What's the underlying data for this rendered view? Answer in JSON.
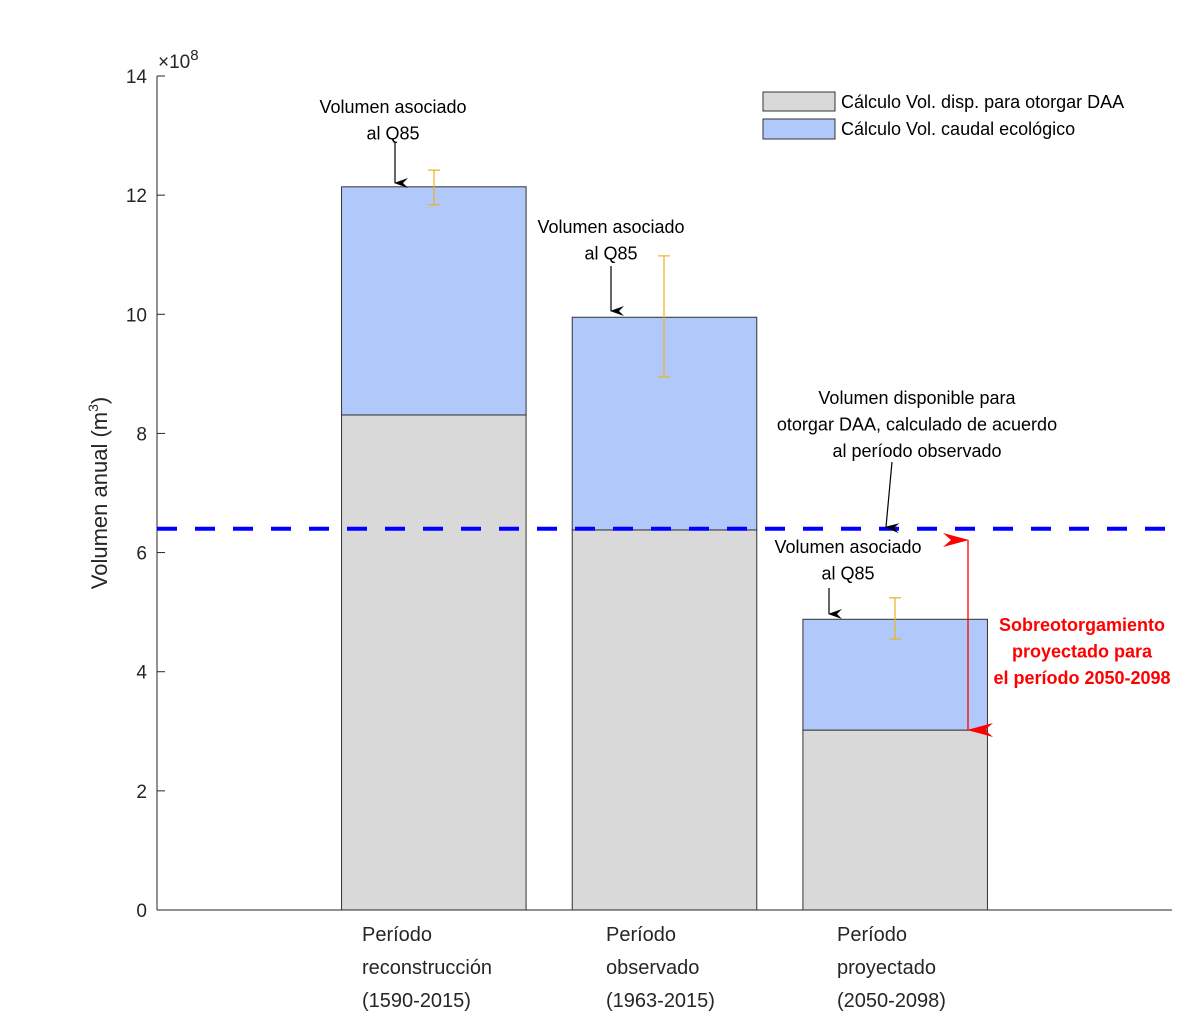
{
  "chart_data": {
    "type": "bar",
    "stacked": true,
    "categories": [
      [
        "Período",
        "reconstrucción",
        "(1590-2015)"
      ],
      [
        "Período",
        "observado",
        "(1963-2015)"
      ],
      [
        "Período",
        "proyectado",
        "(2050-2098)"
      ]
    ],
    "ylabel": "Volumen anual (m",
    "ylabel_sup": "3",
    "ylabel_close": ")",
    "y_multiplier": "×10",
    "y_multiplier_exp": "8",
    "ylim": [
      0,
      14
    ],
    "yticks": [
      0,
      2,
      4,
      6,
      8,
      10,
      12,
      14
    ],
    "grid": false,
    "legend_position": "top-right",
    "series": [
      {
        "name": "Cálculo Vol. disp. para otorgar DAA",
        "color": "#d9d9d9",
        "values": [
          8.31,
          6.38,
          3.02
        ]
      },
      {
        "name": "Cálculo Vol. caudal ecológico",
        "color": "#b0c8fa",
        "values": [
          3.83,
          3.57,
          1.86
        ]
      }
    ],
    "totals": [
      12.14,
      9.95,
      4.88
    ],
    "error_bars": {
      "color": "#edb120",
      "low": [
        11.84,
        8.95,
        4.55
      ],
      "high": [
        12.42,
        10.98,
        5.24
      ]
    },
    "reference_line": {
      "value": 6.4,
      "color": "#0000ff",
      "style": "dashed"
    },
    "annotations": [
      {
        "lines": [
          "Volumen asociado",
          "al Q85"
        ]
      },
      {
        "lines": [
          "Volumen asociado",
          "al Q85"
        ]
      },
      {
        "lines": [
          "Volumen asociado",
          "al Q85"
        ]
      },
      {
        "lines": [
          "Volumen disponible para",
          "otorgar DAA, calculado de acuerdo",
          "al período observado"
        ]
      },
      {
        "lines": [
          "Sobreotorgamiento",
          "proyectado para",
          "el período 2050-2098"
        ],
        "color": "#ff0000"
      }
    ]
  }
}
